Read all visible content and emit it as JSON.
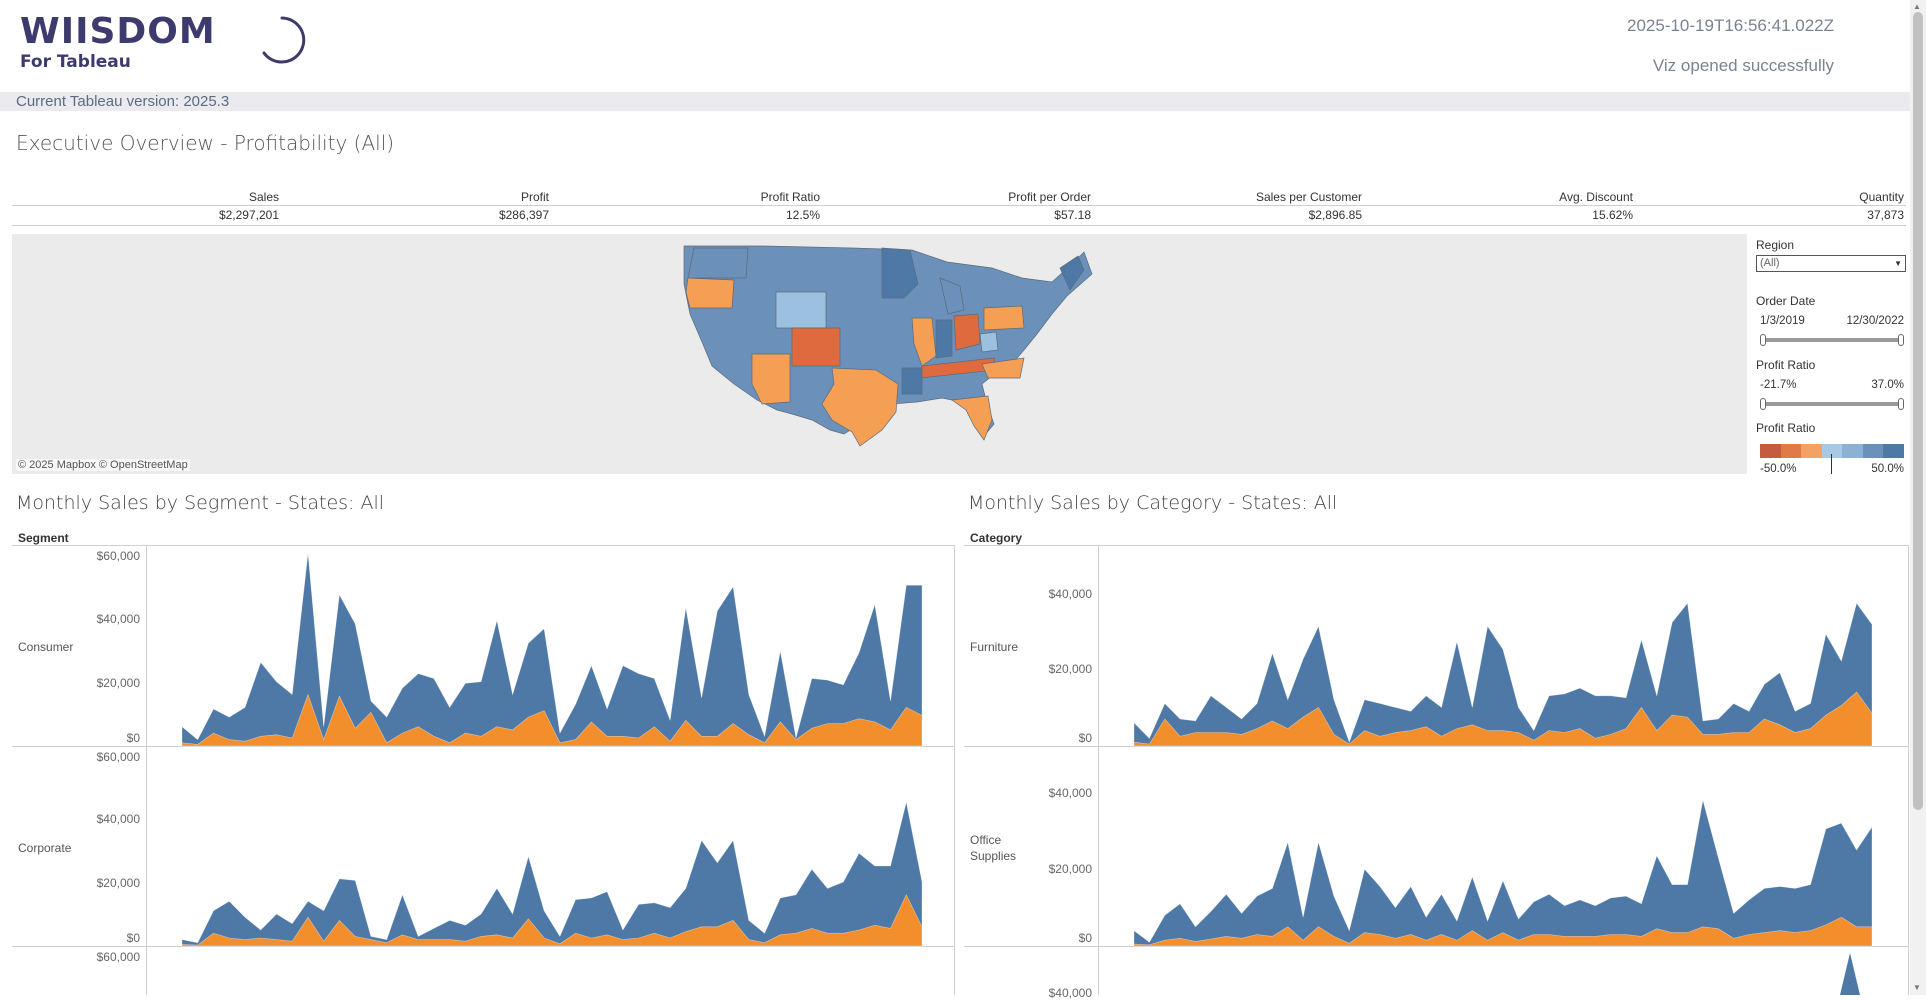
{
  "header": {
    "brand_main": "WIISDOM",
    "brand_sub": "For Tableau",
    "timestamp": "2025-10-19T16:56:41.022Z",
    "status": "Viz opened successfully",
    "version_text": "Current Tableau version: 2025.3"
  },
  "dashboard": {
    "title": "Executive Overview - Profitability (All)"
  },
  "kpis": [
    {
      "label": "Sales",
      "value": "$2,297,201"
    },
    {
      "label": "Profit",
      "value": "$286,397"
    },
    {
      "label": "Profit Ratio",
      "value": "12.5%"
    },
    {
      "label": "Profit per Order",
      "value": "$57.18"
    },
    {
      "label": "Sales per Customer",
      "value": "$2,896.85"
    },
    {
      "label": "Avg. Discount",
      "value": "15.62%"
    },
    {
      "label": "Quantity",
      "value": "37,873"
    }
  ],
  "map": {
    "attribution": "© 2025 Mapbox  © OpenStreetMap",
    "colors": {
      "dark_blue": "#4e79a7",
      "mid_blue": "#6b91bb",
      "light_blue": "#9cc1e0",
      "orange": "#f59f55",
      "dark_orange": "#de6a3d"
    }
  },
  "filters": {
    "region_label": "Region",
    "region_value": "(All)",
    "order_date_label": "Order Date",
    "order_date_min": "1/3/2019",
    "order_date_max": "12/30/2022",
    "profit_ratio_label": "Profit Ratio",
    "profit_ratio_min": "-21.7%",
    "profit_ratio_max": "37.0%",
    "legend_label": "Profit Ratio",
    "legend_min": "-50.0%",
    "legend_max": "50.0%",
    "legend_colors": [
      "#c65b40",
      "#e07b47",
      "#f4a261",
      "#a9c8e6",
      "#8db0d5",
      "#6b91bb",
      "#4e79a7"
    ]
  },
  "segment_chart": {
    "title": "Monthly Sales by Segment - States: All",
    "facet_label": "Segment",
    "rows": [
      "Consumer",
      "Corporate"
    ],
    "ticks": [
      "$60,000",
      "$40,000",
      "$20,000",
      "$0"
    ]
  },
  "category_chart": {
    "title": "Monthly Sales by Category - States: All",
    "facet_label": "Category",
    "rows": [
      "Furniture",
      "Office\nSupplies"
    ],
    "ticks": [
      "$40,000",
      "$20,000",
      "$0"
    ],
    "partial_tick": "$40,000"
  },
  "colors": {
    "blue": "#4e79a7",
    "orange": "#f28e2b"
  },
  "chart_data": [
    {
      "type": "area",
      "title": "Monthly Sales by Segment - States: All",
      "facet": "Consumer",
      "ylim": [
        0,
        60000
      ],
      "series": [
        {
          "name": "blue",
          "values": [
            6000,
            2000,
            11500,
            9000,
            12000,
            26000,
            20000,
            16000,
            60000,
            6000,
            47000,
            38000,
            14000,
            9000,
            18000,
            22500,
            21000,
            12000,
            19500,
            20000,
            39000,
            16000,
            32000,
            36500,
            4000,
            13000,
            25000,
            11500,
            25000,
            22500,
            21000,
            8000,
            43000,
            15000,
            42000,
            49500,
            16000,
            3000,
            29500,
            2500,
            21000,
            20500,
            19000,
            29000,
            44000,
            14000,
            50000,
            50000
          ]
        },
        {
          "name": "orange",
          "values": [
            1000,
            500,
            4000,
            2000,
            1500,
            3000,
            3500,
            2500,
            16000,
            2000,
            15500,
            5500,
            10500,
            1000,
            4000,
            6000,
            3000,
            1000,
            4000,
            3000,
            6000,
            5000,
            9000,
            11000,
            1000,
            2000,
            7500,
            3000,
            3000,
            2500,
            6000,
            1500,
            8000,
            3000,
            3000,
            7000,
            3500,
            1000,
            7500,
            2000,
            5500,
            7000,
            7000,
            8500,
            7500,
            5000,
            12000,
            9500
          ]
        }
      ]
    },
    {
      "type": "area",
      "title": "Monthly Sales by Segment - States: All",
      "facet": "Corporate",
      "ylim": [
        0,
        60000
      ],
      "series": [
        {
          "name": "blue",
          "values": [
            2000,
            1000,
            11000,
            14000,
            9000,
            5000,
            10000,
            7000,
            14000,
            11000,
            21000,
            20500,
            3000,
            2000,
            16000,
            3000,
            5500,
            8000,
            6500,
            10000,
            18000,
            10000,
            28000,
            11000,
            3000,
            14500,
            15000,
            17000,
            5000,
            13000,
            13500,
            12000,
            18000,
            33000,
            26000,
            33000,
            8000,
            4000,
            15000,
            16000,
            24000,
            18000,
            20000,
            29000,
            25000,
            25000,
            45000,
            20000
          ]
        },
        {
          "name": "orange",
          "values": [
            500,
            300,
            4000,
            2500,
            2000,
            2500,
            2000,
            1500,
            9000,
            1500,
            8000,
            3000,
            2000,
            1000,
            3500,
            2000,
            2000,
            2000,
            1500,
            3000,
            3500,
            2500,
            8500,
            2500,
            700,
            4000,
            2500,
            3500,
            2000,
            2500,
            4000,
            2500,
            4500,
            6000,
            6000,
            8000,
            2000,
            1000,
            3500,
            4000,
            5500,
            4000,
            4000,
            5000,
            6500,
            5500,
            16000,
            6000
          ]
        }
      ]
    },
    {
      "type": "area",
      "title": "Monthly Sales by Category - States: All",
      "facet": "Furniture",
      "ylim": [
        0,
        50000
      ],
      "series": [
        {
          "name": "blue",
          "values": [
            6000,
            2000,
            11000,
            7000,
            6500,
            13000,
            10000,
            7000,
            11000,
            24000,
            12000,
            22500,
            31000,
            12000,
            1000,
            12000,
            11000,
            10000,
            9000,
            13000,
            10000,
            27000,
            10000,
            31000,
            25000,
            10000,
            4000,
            13000,
            13500,
            15000,
            13000,
            13000,
            12500,
            27500,
            13000,
            32000,
            37000,
            6500,
            7000,
            11000,
            9000,
            16000,
            19000,
            9000,
            11000,
            29000,
            22000,
            37000,
            31500
          ]
        },
        {
          "name": "orange",
          "values": [
            1000,
            500,
            7000,
            2500,
            3500,
            3500,
            3500,
            3000,
            4500,
            6500,
            4500,
            7500,
            10000,
            3000,
            500,
            4000,
            2500,
            3500,
            4000,
            5000,
            2500,
            4500,
            5500,
            4000,
            4000,
            3500,
            1500,
            4000,
            3500,
            4500,
            2000,
            3000,
            4500,
            10000,
            4000,
            8000,
            7500,
            3000,
            3000,
            3500,
            3500,
            7000,
            5500,
            3500,
            4500,
            8000,
            10500,
            14000,
            8500
          ]
        }
      ]
    },
    {
      "type": "area",
      "title": "Monthly Sales by Category - States: All",
      "facet": "Office Supplies",
      "ylim": [
        0,
        50000
      ],
      "series": [
        {
          "name": "blue",
          "values": [
            4000,
            1000,
            8000,
            11000,
            5000,
            9000,
            13500,
            8500,
            13000,
            15000,
            27000,
            7500,
            27000,
            13000,
            4000,
            20000,
            15500,
            10000,
            15500,
            7500,
            13500,
            6500,
            18000,
            6500,
            17000,
            7000,
            11500,
            13500,
            10500,
            12000,
            10500,
            12500,
            13000,
            11000,
            23500,
            16000,
            16000,
            38000,
            23000,
            8500,
            12000,
            15000,
            15500,
            15000,
            16000,
            30500,
            32000,
            25000,
            31000
          ]
        },
        {
          "name": "orange",
          "values": [
            500,
            300,
            1500,
            2000,
            1200,
            1800,
            2500,
            2000,
            3000,
            2500,
            5000,
            1500,
            5000,
            2500,
            700,
            3500,
            3000,
            2000,
            3000,
            1500,
            3000,
            1500,
            4000,
            1500,
            3500,
            1500,
            3000,
            3000,
            2500,
            2500,
            2500,
            3000,
            3000,
            2500,
            4500,
            3500,
            3500,
            5000,
            4500,
            2000,
            3000,
            3500,
            4000,
            3500,
            4000,
            5500,
            7500,
            5000,
            5000
          ]
        }
      ]
    }
  ]
}
